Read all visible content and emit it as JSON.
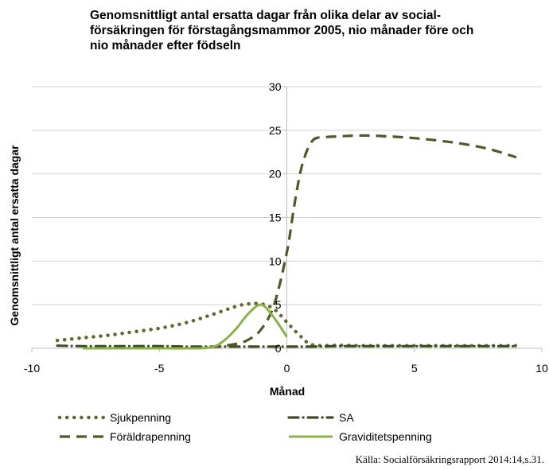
{
  "chart_data": {
    "type": "line",
    "title": "Genomsnittligt antal ersatta dagar från olika delar av social-\nförsäkringen för förstagångsmammor 2005, nio månader före och\nnio månader efter födseln",
    "xlabel": "Månad",
    "ylabel": "Genomsnittligt antal ersatta dagar",
    "xlim": [
      -10,
      10
    ],
    "ylim": [
      0,
      30
    ],
    "xticks": [
      -10,
      -5,
      0,
      5,
      10
    ],
    "yticks": [
      0,
      5,
      10,
      15,
      20,
      25,
      30
    ],
    "grid": "horizontal",
    "legend_position": "bottom",
    "series": [
      {
        "name": "Sjukpenning",
        "style": "dotted",
        "color": "#5b6b2e",
        "x": [
          -9,
          -8,
          -7,
          -6,
          -5,
          -4,
          -3,
          -2,
          -1.5,
          -1,
          -0.5,
          0,
          0.5,
          1,
          2,
          3,
          4,
          5,
          6,
          7,
          8,
          9
        ],
        "y": [
          0.9,
          1.2,
          1.5,
          1.9,
          2.3,
          2.9,
          3.8,
          4.8,
          5.1,
          5.1,
          4.5,
          3.0,
          1.5,
          0.4,
          0.35,
          0.3,
          0.3,
          0.3,
          0.3,
          0.3,
          0.3,
          0.3
        ]
      },
      {
        "name": "SA",
        "style": "dashdot",
        "color": "#3e4a22",
        "x": [
          -9,
          -8,
          -7,
          -6,
          -5,
          -4,
          -3,
          -2,
          -1,
          0,
          1,
          2,
          3,
          4,
          5,
          6,
          7,
          8,
          9
        ],
        "y": [
          0.3,
          0.25,
          0.25,
          0.25,
          0.25,
          0.2,
          0.2,
          0.2,
          0.2,
          0.2,
          0.2,
          0.25,
          0.25,
          0.25,
          0.25,
          0.25,
          0.25,
          0.25,
          0.25
        ]
      },
      {
        "name": "Föräldrapenning",
        "style": "dashed",
        "color": "#4f5a28",
        "x": [
          -3,
          -2,
          -1.5,
          -1,
          -0.5,
          0,
          0.3,
          0.6,
          1,
          1.5,
          2,
          3,
          4,
          5,
          6,
          7,
          8,
          9
        ],
        "y": [
          0.1,
          0.5,
          1.0,
          2.2,
          5.0,
          11.0,
          16.5,
          21.0,
          23.8,
          24.2,
          24.3,
          24.4,
          24.3,
          24.1,
          23.8,
          23.4,
          22.8,
          21.9
        ]
      },
      {
        "name": "Graviditetspenning",
        "style": "solid",
        "color": "#8cb04a",
        "x": [
          -8,
          -7,
          -6,
          -5,
          -4,
          -3,
          -2.5,
          -2,
          -1.5,
          -1,
          -0.5,
          0
        ],
        "y": [
          0,
          0,
          0,
          0,
          0,
          0.1,
          0.8,
          2.2,
          4.0,
          5.0,
          3.5,
          1.3
        ]
      }
    ],
    "source": "Källa: Socialförsäkringsrapport 2014:14,s.31."
  }
}
